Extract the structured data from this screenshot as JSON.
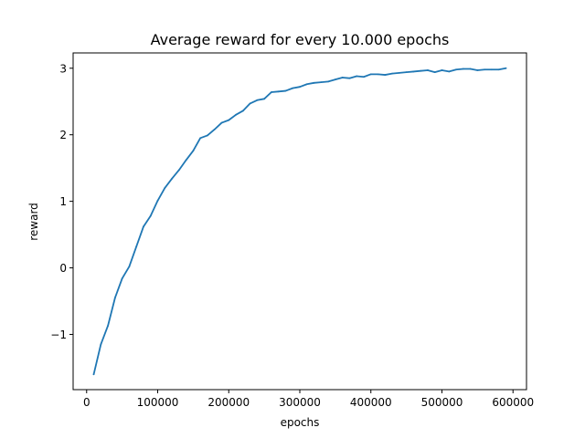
{
  "chart_data": {
    "type": "line",
    "title": "Average reward for every 10.000 epochs",
    "xlabel": "epochs",
    "ylabel": "reward",
    "xlim": [
      -19000,
      619000
    ],
    "ylim": [
      -1.83,
      3.23
    ],
    "xticks": [
      {
        "value": 0,
        "label": "0"
      },
      {
        "value": 100000,
        "label": "100000"
      },
      {
        "value": 200000,
        "label": "200000"
      },
      {
        "value": 300000,
        "label": "300000"
      },
      {
        "value": 400000,
        "label": "400000"
      },
      {
        "value": 500000,
        "label": "500000"
      },
      {
        "value": 600000,
        "label": "600000"
      }
    ],
    "yticks": [
      {
        "value": -1,
        "label": "−1"
      },
      {
        "value": 0,
        "label": "0"
      },
      {
        "value": 1,
        "label": "1"
      },
      {
        "value": 2,
        "label": "2"
      },
      {
        "value": 3,
        "label": "3"
      }
    ],
    "grid": false,
    "series": [
      {
        "color": "#1f77b4",
        "x": [
          10000,
          20000,
          30000,
          40000,
          50000,
          60000,
          70000,
          80000,
          90000,
          100000,
          110000,
          120000,
          130000,
          140000,
          150000,
          160000,
          170000,
          180000,
          190000,
          200000,
          210000,
          220000,
          230000,
          240000,
          250000,
          260000,
          270000,
          280000,
          290000,
          300000,
          310000,
          320000,
          330000,
          340000,
          350000,
          360000,
          370000,
          380000,
          390000,
          400000,
          410000,
          420000,
          430000,
          440000,
          450000,
          460000,
          470000,
          480000,
          490000,
          500000,
          510000,
          520000,
          530000,
          540000,
          550000,
          560000,
          570000,
          580000,
          590000
        ],
        "y": [
          -1.6,
          -1.15,
          -0.87,
          -0.45,
          -0.16,
          0.02,
          0.32,
          0.62,
          0.78,
          1.01,
          1.2,
          1.34,
          1.47,
          1.62,
          1.76,
          1.95,
          1.99,
          2.08,
          2.18,
          2.22,
          2.3,
          2.36,
          2.47,
          2.52,
          2.54,
          2.64,
          2.65,
          2.66,
          2.7,
          2.72,
          2.76,
          2.78,
          2.79,
          2.8,
          2.83,
          2.86,
          2.85,
          2.88,
          2.87,
          2.91,
          2.91,
          2.9,
          2.92,
          2.93,
          2.94,
          2.95,
          2.96,
          2.97,
          2.94,
          2.97,
          2.95,
          2.98,
          2.99,
          2.99,
          2.97,
          2.98,
          2.98,
          2.98,
          3.0
        ]
      }
    ]
  }
}
